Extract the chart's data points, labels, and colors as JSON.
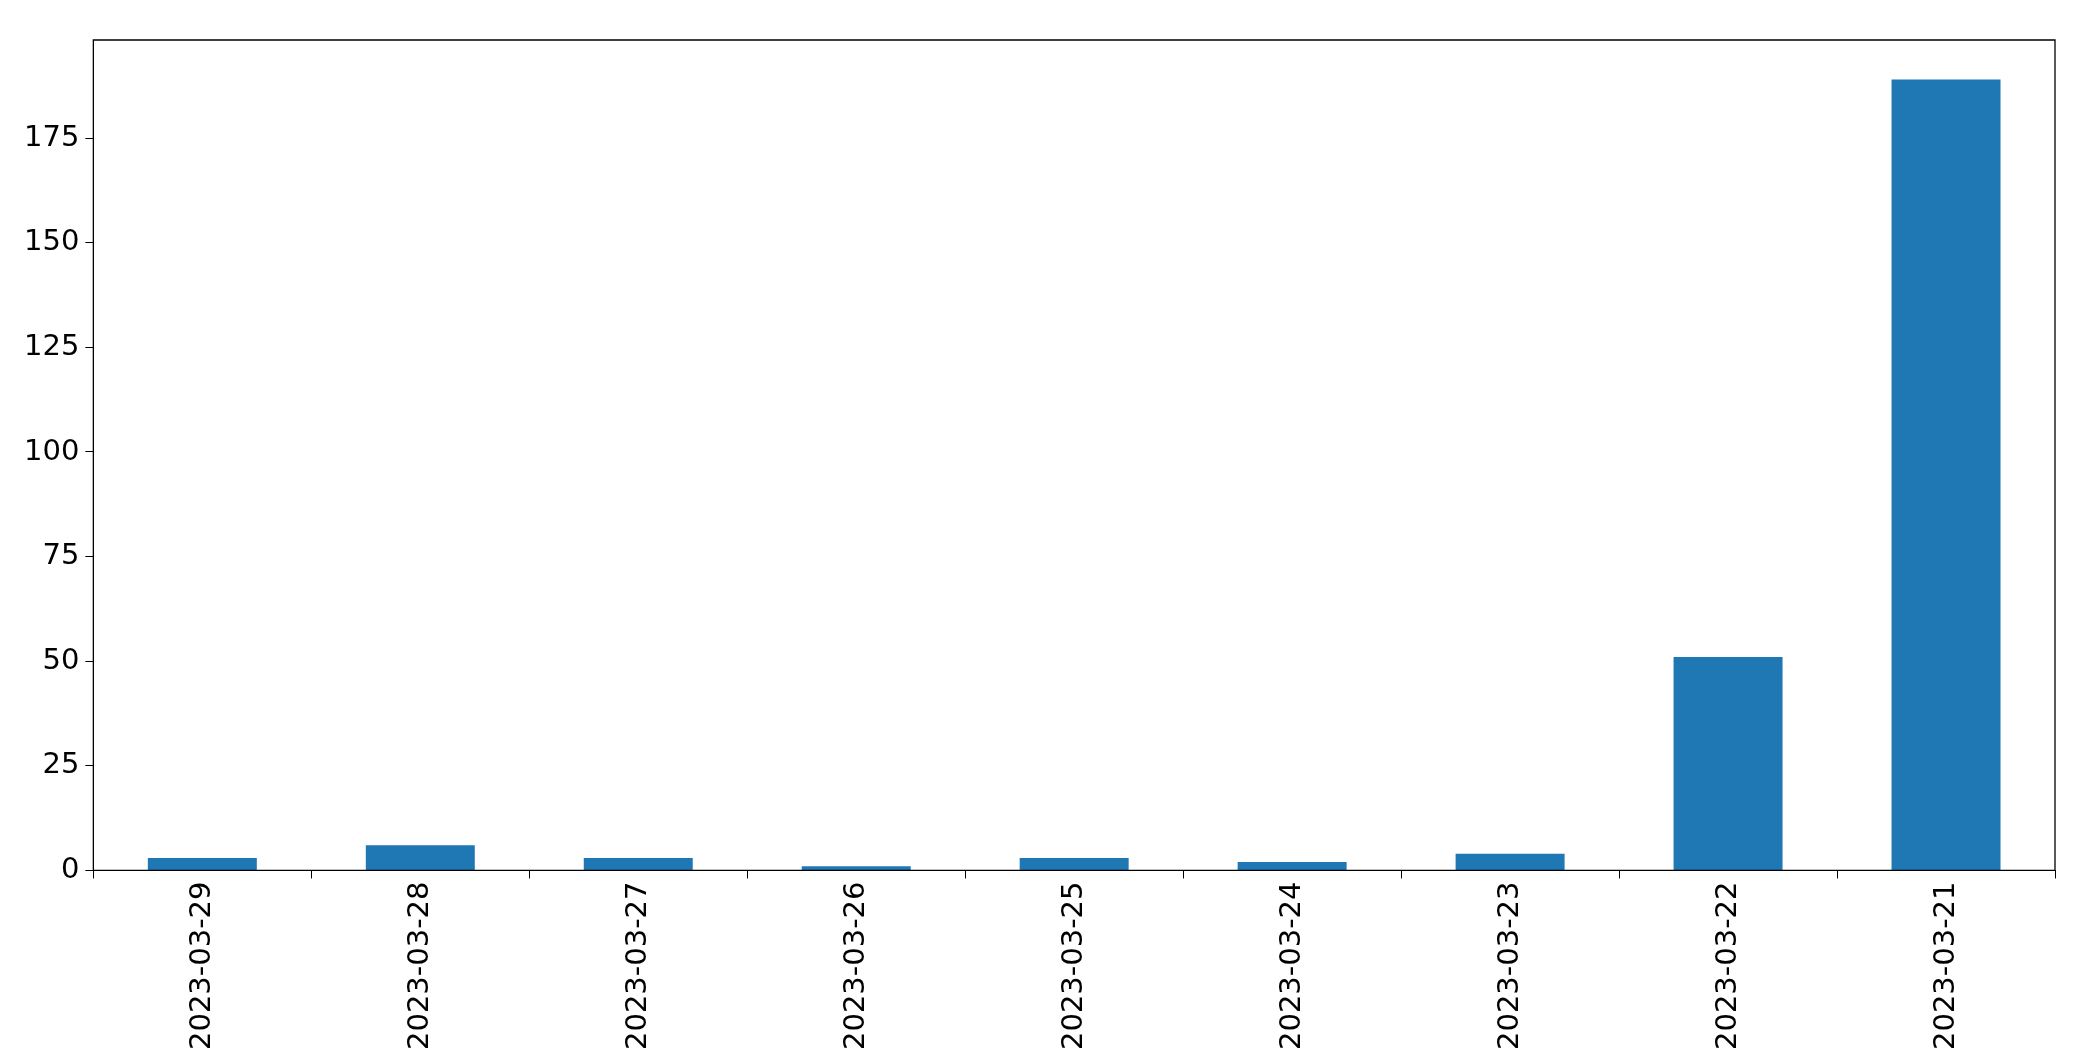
{
  "chart_data": {
    "type": "bar",
    "categories": [
      "2023-03-29",
      "2023-03-28",
      "2023-03-27",
      "2023-03-26",
      "2023-03-25",
      "2023-03-24",
      "2023-03-23",
      "2023-03-22",
      "2023-03-21"
    ],
    "values": [
      3,
      6,
      3,
      1,
      3,
      2,
      4,
      51,
      189
    ],
    "color": "#1f77b4",
    "ylim": [
      0,
      198.45
    ],
    "yticks": [
      0,
      25,
      50,
      75,
      100,
      125,
      150,
      175
    ],
    "grid": false,
    "legend": false
  }
}
